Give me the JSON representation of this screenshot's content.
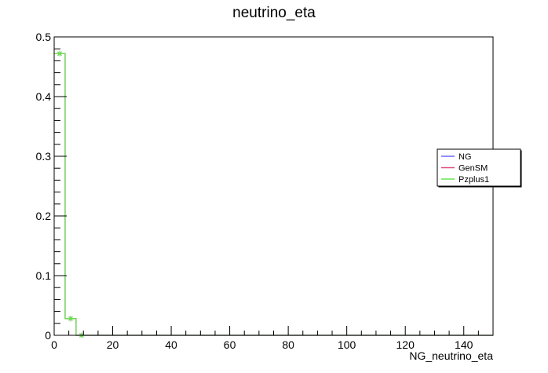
{
  "chart_data": {
    "type": "line",
    "title": "neutrino_eta",
    "xlabel": "NG_neutrino_eta",
    "ylabel": "",
    "xlim": [
      0,
      150
    ],
    "ylim": [
      0,
      0.5
    ],
    "bin_width": 3.75,
    "x_ticks": [
      "0",
      "20",
      "40",
      "60",
      "80",
      "100",
      "120",
      "140"
    ],
    "y_ticks": [
      "0",
      "0.1",
      "0.2",
      "0.3",
      "0.4",
      "0.5"
    ],
    "grid": false,
    "legend_position": "right",
    "series": [
      {
        "name": "NG",
        "color": "#6b6bff",
        "marker": "star",
        "values": [
          0.472,
          0.028,
          0.0,
          0.0,
          0.0,
          0.0,
          0.0,
          0.0,
          0.0,
          0.0,
          0.0,
          0.0,
          0.0,
          0.0,
          0.0,
          0.0,
          0.0,
          0.0,
          0.0,
          0.0,
          0.0,
          0.0,
          0.0,
          0.0,
          0.0,
          0.0,
          0.0,
          0.0,
          0.0,
          0.0,
          0.0,
          0.0,
          0.0,
          0.0,
          0.0,
          0.0,
          0.0,
          0.0,
          0.0,
          0.0
        ]
      },
      {
        "name": "GenSM",
        "color": "#e0507a",
        "marker": "star",
        "values": [
          0.472,
          0.028,
          0.0,
          0.0,
          0.0,
          0.0,
          0.0,
          0.0,
          0.0,
          0.0,
          0.0,
          0.0,
          0.0,
          0.0,
          0.0,
          0.0,
          0.0,
          0.0,
          0.0,
          0.0,
          0.0,
          0.0,
          0.0,
          0.0,
          0.0,
          0.0,
          0.0,
          0.0,
          0.0,
          0.0,
          0.0,
          0.0,
          0.0,
          0.0,
          0.0,
          0.0,
          0.0,
          0.0,
          0.0,
          0.0
        ]
      },
      {
        "name": "Pzplus1",
        "color": "#66e64d",
        "marker": "star",
        "values": [
          0.472,
          0.028,
          0.0,
          0.0,
          0.0,
          0.0,
          0.0,
          0.0,
          0.0,
          0.0,
          0.0,
          0.0,
          0.0,
          0.0,
          0.0,
          0.0,
          0.0,
          0.0,
          0.0,
          0.0,
          0.0,
          0.0,
          0.0,
          0.0,
          0.0,
          0.0,
          0.0,
          0.0,
          0.0,
          0.0,
          0.0,
          0.0,
          0.0,
          0.0,
          0.0,
          0.0,
          0.0,
          0.0,
          0.0,
          0.0
        ]
      }
    ]
  }
}
